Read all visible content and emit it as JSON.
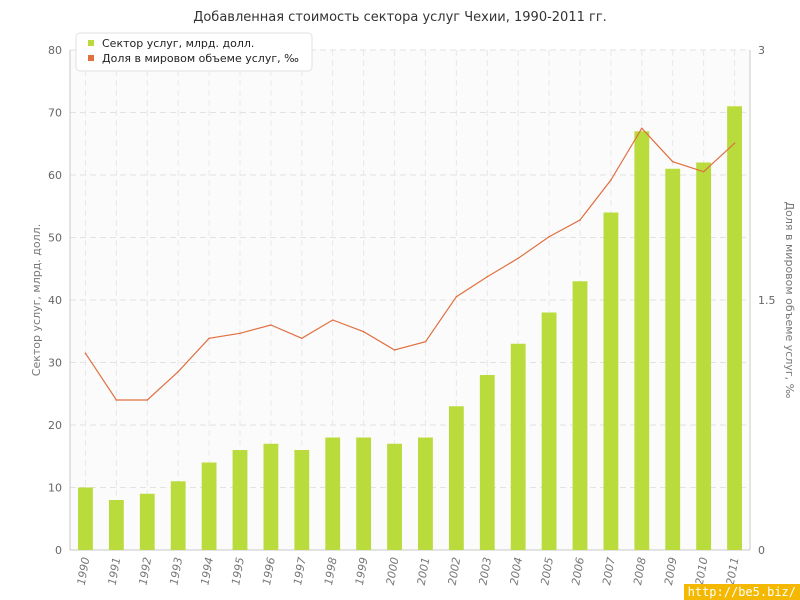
{
  "chart_data": {
    "type": "bar",
    "title": "Добавленная стоимость сектора услуг Чехии, 1990-2011 гг.",
    "categories": [
      "1990",
      "1991",
      "1992",
      "1993",
      "1994",
      "1995",
      "1996",
      "1997",
      "1998",
      "1999",
      "2000",
      "2001",
      "2002",
      "2003",
      "2004",
      "2005",
      "2006",
      "2007",
      "2008",
      "2009",
      "2010",
      "2011"
    ],
    "series": [
      {
        "name": "Сектор услуг, млрд. долл.",
        "type": "bar",
        "axis": "left",
        "color": "#b9dc3c",
        "values": [
          10,
          8,
          9,
          11,
          14,
          16,
          17,
          16,
          18,
          18,
          17,
          18,
          23,
          28,
          33,
          38,
          43,
          54,
          67,
          61,
          62,
          71
        ]
      },
      {
        "name": "Доля в мировом объеме услуг, ‰",
        "type": "line",
        "axis": "right",
        "color": "#e07040",
        "values": [
          1.18,
          0.9,
          0.9,
          1.07,
          1.27,
          1.3,
          1.35,
          1.27,
          1.38,
          1.31,
          1.2,
          1.25,
          1.52,
          1.64,
          1.75,
          1.88,
          1.98,
          2.22,
          2.53,
          2.33,
          2.27,
          2.44
        ]
      }
    ],
    "ylabel": "Сектор услуг, млрд. долл.",
    "ylabel_right": "Доля в мировом объеме услуг, ‰",
    "ylim": [
      0,
      80
    ],
    "ylim_right": [
      0,
      3
    ],
    "yticks": [
      "0",
      "10",
      "20",
      "30",
      "40",
      "50",
      "60",
      "70",
      "80"
    ],
    "yticks_right": [
      "0",
      "1.5",
      "3"
    ],
    "grid": true,
    "legend": "top-left"
  },
  "watermark": "http://be5.biz/"
}
